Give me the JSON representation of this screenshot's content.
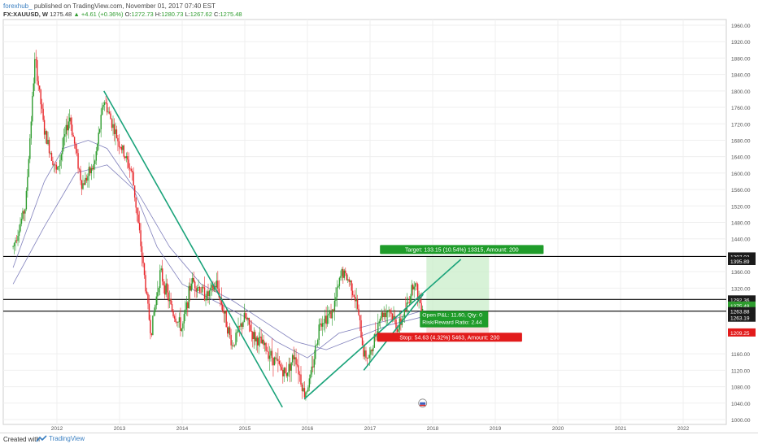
{
  "header": {
    "author": "forexhub_",
    "published_text": "published on TradingView.com, November 01, 2017 07:40 EST"
  },
  "symbol_line": {
    "symbol": "FX:XAUUSD, W",
    "last": "1275.48",
    "change": "▲ +4.61 (+0.36%)",
    "o_label": "O:",
    "o": "1272.73",
    "h_label": "H:",
    "h": "1280.73",
    "l_label": "L:",
    "l": "1267.62",
    "c_label": "C:",
    "c": "1275.48"
  },
  "footer": {
    "created_with": "Created with",
    "brand": "TradingView"
  },
  "colors": {
    "up": "#2e9c2e",
    "down": "#e8262a",
    "trendline": "#1aa37a",
    "ma": "#6a6ab0",
    "hline": "#000000",
    "target_fill": "#c9eec9",
    "target_label": "#1f9c2a",
    "stop_label": "#e21b1b"
  },
  "chart_data": {
    "type": "candlestick",
    "symbol": "XAUUSD",
    "timeframe": "W",
    "x_ticks": [
      "2012",
      "2013",
      "2014",
      "2015",
      "2016",
      "2017",
      "2018",
      "2019",
      "2020",
      "2021",
      "2022"
    ],
    "y_ticks": [
      "1960.00",
      "1920.00",
      "1880.00",
      "1840.00",
      "1800.00",
      "1760.00",
      "1720.00",
      "1680.00",
      "1640.00",
      "1600.00",
      "1560.00",
      "1520.00",
      "1480.00",
      "1440.00",
      "1360.00",
      "1320.00",
      "1160.00",
      "1120.00",
      "1080.00",
      "1040.00",
      "1000.00"
    ],
    "ylim": [
      1000,
      1970
    ],
    "price_path": [
      [
        2011.3,
        1420
      ],
      [
        2011.5,
        1520
      ],
      [
        2011.65,
        1880
      ],
      [
        2011.8,
        1700
      ],
      [
        2012.0,
        1600
      ],
      [
        2012.2,
        1740
      ],
      [
        2012.4,
        1570
      ],
      [
        2012.6,
        1620
      ],
      [
        2012.75,
        1780
      ],
      [
        2012.95,
        1690
      ],
      [
        2013.2,
        1600
      ],
      [
        2013.35,
        1410
      ],
      [
        2013.5,
        1210
      ],
      [
        2013.65,
        1360
      ],
      [
        2013.85,
        1260
      ],
      [
        2014.0,
        1220
      ],
      [
        2014.15,
        1340
      ],
      [
        2014.4,
        1300
      ],
      [
        2014.55,
        1330
      ],
      [
        2014.8,
        1180
      ],
      [
        2015.0,
        1250
      ],
      [
        2015.15,
        1200
      ],
      [
        2015.3,
        1180
      ],
      [
        2015.5,
        1140
      ],
      [
        2015.65,
        1110
      ],
      [
        2015.8,
        1160
      ],
      [
        2015.95,
        1060
      ],
      [
        2016.05,
        1100
      ],
      [
        2016.2,
        1240
      ],
      [
        2016.4,
        1260
      ],
      [
        2016.55,
        1360
      ],
      [
        2016.7,
        1330
      ],
      [
        2016.8,
        1270
      ],
      [
        2016.9,
        1160
      ],
      [
        2017.0,
        1150
      ],
      [
        2017.15,
        1250
      ],
      [
        2017.3,
        1270
      ],
      [
        2017.45,
        1220
      ],
      [
        2017.6,
        1280
      ],
      [
        2017.7,
        1340
      ],
      [
        2017.8,
        1285
      ],
      [
        2017.84,
        1275
      ]
    ],
    "trendlines": [
      {
        "from": [
          2012.75,
          1800
        ],
        "to": [
          2015.6,
          1030
        ]
      },
      {
        "from": [
          2015.95,
          1050
        ],
        "to": [
          2018.45,
          1390
        ]
      },
      {
        "from": [
          2016.9,
          1120
        ],
        "to": [
          2017.85,
          1305
        ]
      }
    ],
    "moving_averages": [
      {
        "points": [
          [
            2011.3,
            1370
          ],
          [
            2011.8,
            1580
          ],
          [
            2012.1,
            1660
          ],
          [
            2012.5,
            1680
          ],
          [
            2012.8,
            1660
          ],
          [
            2013.2,
            1570
          ],
          [
            2013.6,
            1420
          ],
          [
            2014.0,
            1330
          ],
          [
            2014.5,
            1290
          ],
          [
            2015.0,
            1250
          ],
          [
            2015.5,
            1190
          ],
          [
            2016.0,
            1150
          ],
          [
            2016.5,
            1210
          ],
          [
            2017.0,
            1230
          ],
          [
            2017.5,
            1250
          ],
          [
            2017.84,
            1265
          ]
        ]
      },
      {
        "points": [
          [
            2011.3,
            1330
          ],
          [
            2011.8,
            1470
          ],
          [
            2012.3,
            1600
          ],
          [
            2012.8,
            1620
          ],
          [
            2013.3,
            1550
          ],
          [
            2013.8,
            1420
          ],
          [
            2014.3,
            1330
          ],
          [
            2014.8,
            1290
          ],
          [
            2015.3,
            1240
          ],
          [
            2015.8,
            1190
          ],
          [
            2016.3,
            1170
          ],
          [
            2016.8,
            1200
          ],
          [
            2017.3,
            1230
          ],
          [
            2017.84,
            1250
          ]
        ]
      }
    ],
    "horizontal_lines": [
      1397.03,
      1292.36,
      1263.88
    ],
    "price_labels": [
      {
        "value": "1397.03",
        "price": 1397.03,
        "kind": "dark"
      },
      {
        "value": "1395.89",
        "price": 1386,
        "kind": "dark"
      },
      {
        "value": "1292.36",
        "price": 1292.36,
        "kind": "dark"
      },
      {
        "value": "1275.48",
        "price": 1277.5,
        "kind": "green"
      },
      {
        "value": "1263.88",
        "price": 1263.88,
        "kind": "dark"
      },
      {
        "value": "1263.19",
        "price": 1248,
        "kind": "dark"
      },
      {
        "value": "1209.25",
        "price": 1212,
        "kind": "red"
      }
    ],
    "position": {
      "entry": 1263.88,
      "target": 1397.03,
      "stop": 1209.25,
      "x_start": 2017.9,
      "x_end": 2018.9,
      "target_label": "Target: 133.15 (10.54%) 13315, Amount: 200",
      "open_pl_label": "Open P&L: 11.60, Qty: 0",
      "rr_label": "Risk/Reward Ratio: 2.44",
      "stop_label": "Stop: 54.63 (4.32%) 5463, Amount: 200"
    }
  }
}
